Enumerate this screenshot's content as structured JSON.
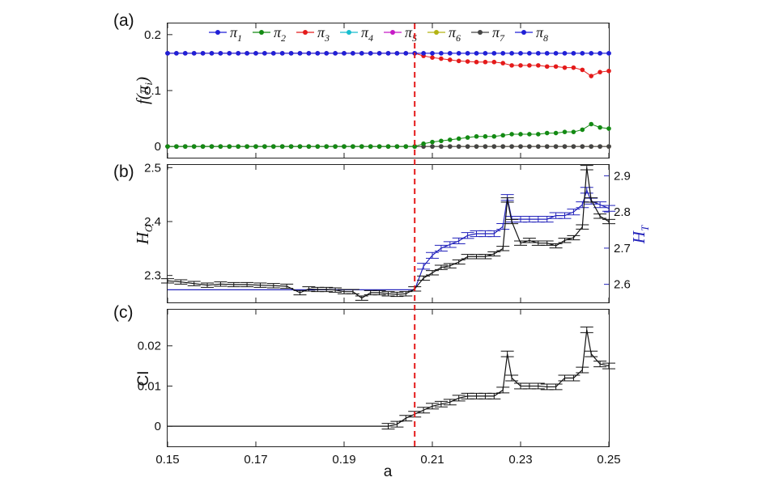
{
  "chart_data": [
    {
      "panel": "(a)",
      "type": "line",
      "ylabel_main": "f",
      "ylabel_var": "π",
      "ylabel_sub": "i",
      "xlim": [
        0.15,
        0.25
      ],
      "ylim": [
        -0.02,
        0.22
      ],
      "yticks": [
        0,
        0.1,
        0.2
      ],
      "ytick_labels": [
        "0",
        "0.1",
        "0.2"
      ],
      "threshold_x": 0.206,
      "legend_placement": "top",
      "series": [
        {
          "name": "π",
          "sub": "1",
          "color": "#1f1fd6",
          "x": [
            0.15,
            0.25
          ],
          "y": [
            0.1667,
            0.1667
          ],
          "dense": true
        },
        {
          "name": "π",
          "sub": "2",
          "color": "#138a13",
          "x": [
            0.15,
            0.206,
            0.208,
            0.21,
            0.212,
            0.214,
            0.216,
            0.218,
            0.22,
            0.222,
            0.224,
            0.226,
            0.227,
            0.228,
            0.23,
            0.232,
            0.234,
            0.236,
            0.238,
            0.24,
            0.242,
            0.244,
            0.245,
            0.246,
            0.248,
            0.25
          ],
          "y": [
            0,
            0,
            0.005,
            0.008,
            0.01,
            0.012,
            0.014,
            0.016,
            0.018,
            0.018,
            0.018,
            0.02,
            0.042,
            0.022,
            0.022,
            0.022,
            0.022,
            0.024,
            0.024,
            0.026,
            0.026,
            0.03,
            0.056,
            0.04,
            0.034,
            0.032
          ],
          "dense": true
        },
        {
          "name": "π",
          "sub": "3",
          "color": "#e41a1a",
          "x": [
            0.15,
            0.206,
            0.208,
            0.21,
            0.212,
            0.214,
            0.216,
            0.218,
            0.22,
            0.222,
            0.224,
            0.226,
            0.227,
            0.228,
            0.23,
            0.232,
            0.234,
            0.236,
            0.238,
            0.24,
            0.242,
            0.244,
            0.245,
            0.246,
            0.248,
            0.25
          ],
          "y": [
            0.1667,
            0.1667,
            0.162,
            0.159,
            0.157,
            0.155,
            0.153,
            0.152,
            0.151,
            0.151,
            0.151,
            0.149,
            0.125,
            0.145,
            0.145,
            0.145,
            0.145,
            0.143,
            0.143,
            0.141,
            0.141,
            0.137,
            0.111,
            0.126,
            0.133,
            0.135
          ],
          "dense": true
        },
        {
          "name": "π",
          "sub": "4",
          "color": "#17becf",
          "x": [
            0.15,
            0.25
          ],
          "y": [
            0,
            0
          ],
          "dense": true
        },
        {
          "name": "π",
          "sub": "5",
          "color": "#c61ac6",
          "x": [
            0.15,
            0.25
          ],
          "y": [
            0,
            0
          ],
          "dense": true
        },
        {
          "name": "π",
          "sub": "6",
          "color": "#b3b313",
          "x": [
            0.15,
            0.25
          ],
          "y": [
            0,
            0
          ],
          "dense": true
        },
        {
          "name": "π",
          "sub": "7",
          "color": "#444444",
          "x": [
            0.15,
            0.25
          ],
          "y": [
            0,
            0
          ],
          "dense": true
        },
        {
          "name": "π",
          "sub": "8",
          "color": "#1f1fd6",
          "x": [
            0.15,
            0.25
          ],
          "y": [
            0.1667,
            0.1667
          ],
          "dense": true
        }
      ]
    },
    {
      "panel": "(b)",
      "type": "line",
      "ylabel_left_main": "H",
      "ylabel_left_sub": "O",
      "ylabel_right_main": "H",
      "ylabel_right_sub": "T",
      "xlim": [
        0.15,
        0.25
      ],
      "ylim_left": [
        2.25,
        2.505
      ],
      "yticks_left": [
        2.3,
        2.4,
        2.5
      ],
      "ytick_labels_left": [
        "2.3",
        "2.4",
        "2.5"
      ],
      "ylim_right": [
        2.55,
        2.93
      ],
      "yticks_right": [
        2.6,
        2.7,
        2.8,
        2.9
      ],
      "ytick_labels_right": [
        "2.6",
        "2.7",
        "2.8",
        "2.9"
      ],
      "threshold_x": 0.206,
      "series": [
        {
          "axis": "right",
          "color": "#2222bb",
          "x": [
            0.15,
            0.206,
            0.208,
            0.21,
            0.212,
            0.214,
            0.216,
            0.218,
            0.22,
            0.222,
            0.224,
            0.226,
            0.227,
            0.228,
            0.23,
            0.232,
            0.234,
            0.236,
            0.238,
            0.24,
            0.242,
            0.244,
            0.245,
            0.246,
            0.248,
            0.25
          ],
          "y": [
            2.585,
            2.585,
            2.65,
            2.68,
            2.7,
            2.71,
            2.72,
            2.735,
            2.74,
            2.74,
            2.74,
            2.76,
            2.84,
            2.78,
            2.78,
            2.78,
            2.78,
            2.78,
            2.79,
            2.79,
            2.8,
            2.82,
            2.86,
            2.83,
            2.82,
            2.81
          ],
          "err": 0.008
        },
        {
          "axis": "left",
          "color": "#111111",
          "x": [
            0.15,
            0.153,
            0.156,
            0.159,
            0.162,
            0.165,
            0.168,
            0.171,
            0.174,
            0.177,
            0.18,
            0.182,
            0.184,
            0.186,
            0.188,
            0.19,
            0.192,
            0.194,
            0.196,
            0.198,
            0.2,
            0.202,
            0.204,
            0.206,
            0.208,
            0.21,
            0.212,
            0.214,
            0.216,
            0.218,
            0.22,
            0.222,
            0.224,
            0.226,
            0.227,
            0.228,
            0.23,
            0.232,
            0.234,
            0.236,
            0.238,
            0.24,
            0.242,
            0.244,
            0.245,
            0.246,
            0.248,
            0.25
          ],
          "y": [
            2.29,
            2.288,
            2.285,
            2.282,
            2.284,
            2.283,
            2.283,
            2.282,
            2.281,
            2.28,
            2.268,
            2.275,
            2.274,
            2.274,
            2.273,
            2.27,
            2.27,
            2.258,
            2.268,
            2.268,
            2.266,
            2.265,
            2.266,
            2.275,
            2.295,
            2.305,
            2.315,
            2.318,
            2.325,
            2.335,
            2.335,
            2.335,
            2.34,
            2.35,
            2.44,
            2.4,
            2.36,
            2.365,
            2.36,
            2.36,
            2.355,
            2.365,
            2.37,
            2.39,
            2.5,
            2.44,
            2.41,
            2.4
          ],
          "err": 0.004
        }
      ]
    },
    {
      "panel": "(c)",
      "type": "line",
      "ylabel": "CI",
      "xlabel": "a",
      "xlim": [
        0.15,
        0.25
      ],
      "xticks": [
        0.15,
        0.17,
        0.19,
        0.21,
        0.23,
        0.25
      ],
      "xtick_labels": [
        "0.15",
        "0.17",
        "0.19",
        "0.21",
        "0.23",
        "0.25"
      ],
      "ylim": [
        -0.005,
        0.029
      ],
      "yticks": [
        0,
        0.01,
        0.02
      ],
      "ytick_labels": [
        "0",
        "0.01",
        "0.02"
      ],
      "threshold_x": 0.206,
      "series": [
        {
          "color": "#111111",
          "x": [
            0.15,
            0.2,
            0.202,
            0.204,
            0.206,
            0.208,
            0.21,
            0.212,
            0.214,
            0.216,
            0.218,
            0.22,
            0.222,
            0.224,
            0.226,
            0.227,
            0.228,
            0.23,
            0.232,
            0.234,
            0.236,
            0.238,
            0.24,
            0.242,
            0.244,
            0.245,
            0.246,
            0.248,
            0.25
          ],
          "y": [
            0,
            0,
            0.0005,
            0.002,
            0.003,
            0.004,
            0.005,
            0.0055,
            0.006,
            0.007,
            0.0075,
            0.0075,
            0.0075,
            0.0075,
            0.009,
            0.018,
            0.012,
            0.01,
            0.01,
            0.01,
            0.0098,
            0.0098,
            0.012,
            0.012,
            0.014,
            0.024,
            0.018,
            0.0155,
            0.015
          ],
          "err": 0.0007,
          "err_from": 0.2
        }
      ]
    }
  ]
}
